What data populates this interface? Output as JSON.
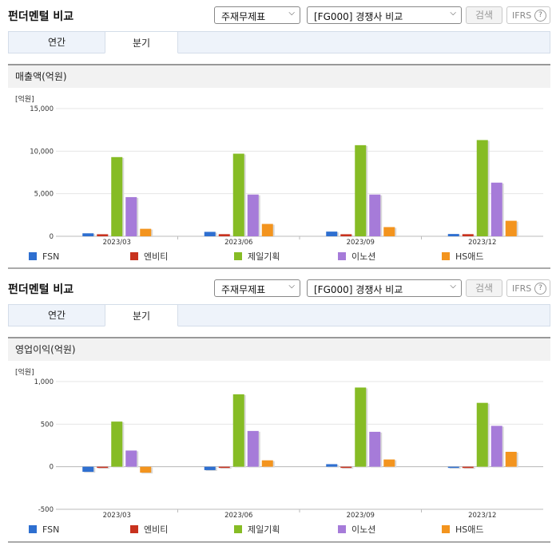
{
  "panels": [
    {
      "title": "펀더멘털 비교",
      "select1": "주재무제표",
      "select2": "[FG000] 경쟁사 비교",
      "search_label": "검색",
      "ifrs_label": "IFRS",
      "help_label": "?",
      "tabs": [
        {
          "label": "연간",
          "active": false
        },
        {
          "label": "분기",
          "active": true
        }
      ],
      "section_title": "매출액(억원)"
    },
    {
      "title": "펀더멘털 비교",
      "select1": "주재무제표",
      "select2": "[FG000] 경쟁사 비교",
      "search_label": "검색",
      "ifrs_label": "IFRS",
      "help_label": "?",
      "tabs": [
        {
          "label": "연간",
          "active": false
        },
        {
          "label": "분기",
          "active": true
        }
      ],
      "section_title": "영업이익(억원)"
    }
  ],
  "chart_data": [
    {
      "type": "bar",
      "unit_label": "[억원]",
      "categories": [
        "2023/03",
        "2023/06",
        "2023/09",
        "2023/12"
      ],
      "ylim": [
        0,
        15000
      ],
      "yticks": [
        0,
        5000,
        10000,
        15000
      ],
      "ytick_labels": [
        "0",
        "5,000",
        "10,000",
        "15,000"
      ],
      "legend_position": "bottom",
      "series": [
        {
          "name": "FSN",
          "color": "#2e6fd0",
          "values": [
            350,
            520,
            550,
            270
          ]
        },
        {
          "name": "엔비티",
          "color": "#c8321e",
          "values": [
            240,
            250,
            240,
            250
          ]
        },
        {
          "name": "제일기획",
          "color": "#86bc25",
          "values": [
            9300,
            9700,
            10700,
            11300
          ]
        },
        {
          "name": "이노션",
          "color": "#a67bd9",
          "values": [
            4600,
            4900,
            4900,
            6300
          ]
        },
        {
          "name": "HS애드",
          "color": "#f3941e",
          "values": [
            880,
            1450,
            1080,
            1820
          ]
        }
      ]
    },
    {
      "type": "bar",
      "unit_label": "[억원]",
      "categories": [
        "2023/03",
        "2023/06",
        "2023/09",
        "2023/12"
      ],
      "ylim": [
        -500,
        1000
      ],
      "yticks": [
        -500,
        0,
        500,
        1000
      ],
      "ytick_labels": [
        "-500",
        "0",
        "500",
        "1,000"
      ],
      "legend_position": "bottom",
      "series": [
        {
          "name": "FSN",
          "color": "#2e6fd0",
          "values": [
            -60,
            -40,
            30,
            -5
          ]
        },
        {
          "name": "엔비티",
          "color": "#c8321e",
          "values": [
            -5,
            -3,
            -3,
            -15
          ]
        },
        {
          "name": "제일기획",
          "color": "#86bc25",
          "values": [
            530,
            850,
            930,
            750
          ]
        },
        {
          "name": "이노션",
          "color": "#a67bd9",
          "values": [
            190,
            420,
            410,
            480
          ]
        },
        {
          "name": "HS애드",
          "color": "#f3941e",
          "values": [
            -70,
            75,
            85,
            175
          ]
        }
      ]
    }
  ]
}
